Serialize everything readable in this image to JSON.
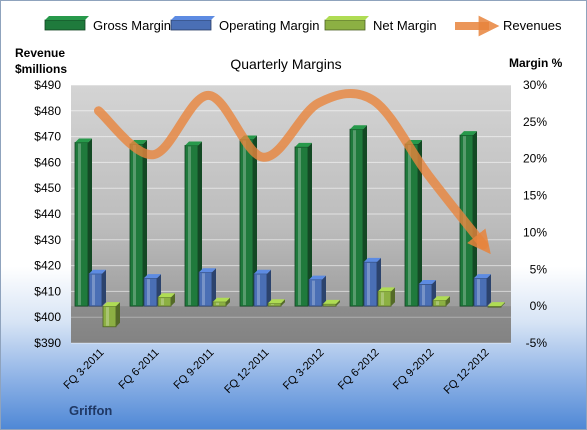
{
  "chart_data": {
    "type": "bar",
    "title": "Quarterly Margins",
    "left_axis_label": [
      "Revenue",
      "$millions"
    ],
    "right_axis_label": "Margin %",
    "company": "Griffon",
    "categories": [
      "FQ 3-2011",
      "FQ 6-2011",
      "FQ 9-2011",
      "FQ 12-2011",
      "FQ 3-2012",
      "FQ 6-2012",
      "FQ 9-2012",
      "FQ 12-2012"
    ],
    "left_axis": {
      "min": 390,
      "max": 490,
      "step": 10,
      "prefix": "$"
    },
    "right_axis": {
      "min": -5,
      "max": 30,
      "step": 5,
      "suffix": "%"
    },
    "series": [
      {
        "name": "Gross Margin",
        "axis": "right",
        "type": "bar",
        "color": "#1f7a3c",
        "values": [
          22.2,
          22.0,
          21.8,
          22.6,
          21.6,
          24.0,
          22.0,
          23.2
        ]
      },
      {
        "name": "Operating Margin",
        "axis": "right",
        "type": "bar",
        "color": "#4a6fb5",
        "values": [
          4.4,
          3.8,
          4.6,
          4.4,
          3.6,
          6.0,
          3.0,
          3.8
        ]
      },
      {
        "name": "Net Margin",
        "axis": "right",
        "type": "bar",
        "color": "#8cb043",
        "values": [
          -2.8,
          1.2,
          0.6,
          0.4,
          0.3,
          2.0,
          0.8,
          0.0
        ]
      },
      {
        "name": "Revenues",
        "axis": "left",
        "type": "line",
        "color": "#e8843c",
        "values": [
          480,
          463,
          486,
          462,
          483,
          484,
          455,
          428
        ]
      }
    ],
    "legend_position": "top",
    "grid": true
  }
}
